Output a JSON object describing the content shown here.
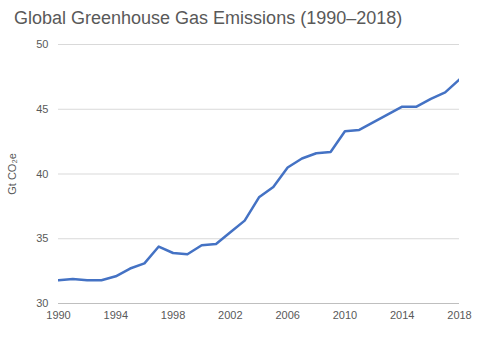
{
  "chart_data": {
    "type": "line",
    "title": "Global Greenhouse Gas Emissions (1990–2018)",
    "y_label": "Gt CO₂e",
    "x": [
      1990,
      1991,
      1992,
      1993,
      1994,
      1995,
      1996,
      1997,
      1998,
      1999,
      2000,
      2001,
      2002,
      2003,
      2004,
      2005,
      2006,
      2007,
      2008,
      2009,
      2010,
      2011,
      2012,
      2013,
      2014,
      2015,
      2016,
      2017,
      2018
    ],
    "values": [
      31.8,
      31.9,
      31.8,
      31.8,
      32.1,
      32.7,
      33.1,
      34.4,
      33.9,
      33.8,
      34.5,
      34.6,
      35.5,
      36.4,
      38.2,
      39.0,
      40.5,
      41.2,
      41.6,
      41.7,
      43.3,
      43.4,
      44.0,
      44.6,
      45.2,
      45.2,
      45.8,
      46.3,
      47.3
    ],
    "color": "#4472c4",
    "xlim": [
      1990,
      2018
    ],
    "xticks": [
      1990,
      1994,
      1998,
      2002,
      2006,
      2010,
      2014,
      2018
    ],
    "ylim": [
      30,
      50
    ],
    "yticks": [
      30,
      35,
      40,
      45,
      50
    ],
    "grid": true
  }
}
